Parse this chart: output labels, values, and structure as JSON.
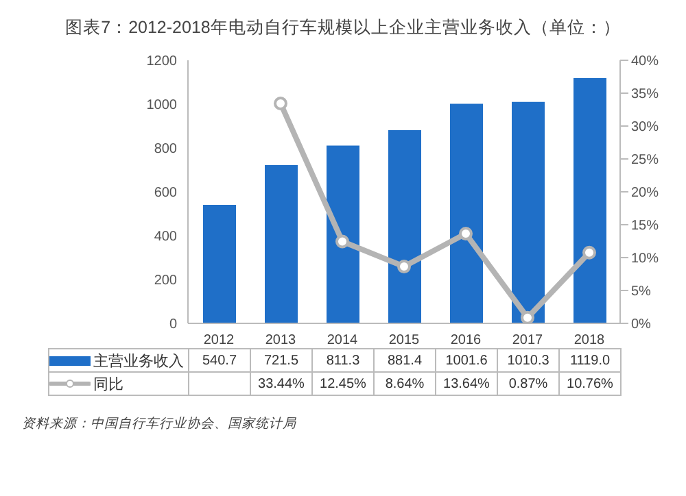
{
  "chart_data": {
    "type": "bar",
    "title": "图表7：2012-2018年电动自行车规模以上企业主营业务收入（单位：）",
    "categories": [
      "2012",
      "2013",
      "2014",
      "2015",
      "2016",
      "2017",
      "2018"
    ],
    "series": [
      {
        "name": "主营业务收入",
        "color": "#1f6fc8",
        "values": [
          540.7,
          721.5,
          811.3,
          881.4,
          1001.6,
          1010.3,
          1119.0
        ],
        "value_labels": [
          "540.7",
          "721.5",
          "811.3",
          "881.4",
          "1001.6",
          "1010.3",
          "1119.0"
        ]
      },
      {
        "name": "同比",
        "type": "line",
        "axis": "y2",
        "color": "#b4b4b4",
        "values": [
          null,
          33.44,
          12.45,
          8.64,
          13.64,
          0.87,
          10.76
        ],
        "value_labels": [
          null,
          "33.44%",
          "12.45%",
          "8.64%",
          "13.64%",
          "0.87%",
          "10.76%"
        ]
      }
    ],
    "ylim": [
      0,
      1200
    ],
    "yticks": [
      0,
      200,
      400,
      600,
      800,
      1000,
      1200
    ],
    "y2lim": [
      0,
      40
    ],
    "y2ticks": [
      {
        "value": 0,
        "label": "0%"
      },
      {
        "value": 5,
        "label": "5%"
      },
      {
        "value": 10,
        "label": "10%"
      },
      {
        "value": 15,
        "label": "15%"
      },
      {
        "value": 20,
        "label": "20%"
      },
      {
        "value": 25,
        "label": "25%"
      },
      {
        "value": 30,
        "label": "30%"
      },
      {
        "value": 35,
        "label": "35%"
      },
      {
        "value": 40,
        "label": "40%"
      }
    ],
    "marker": "circle",
    "legend": "bottom",
    "data_labels": true,
    "annotations": [
      "资料来源：中国自行车行业协会、国家统计局"
    ]
  }
}
